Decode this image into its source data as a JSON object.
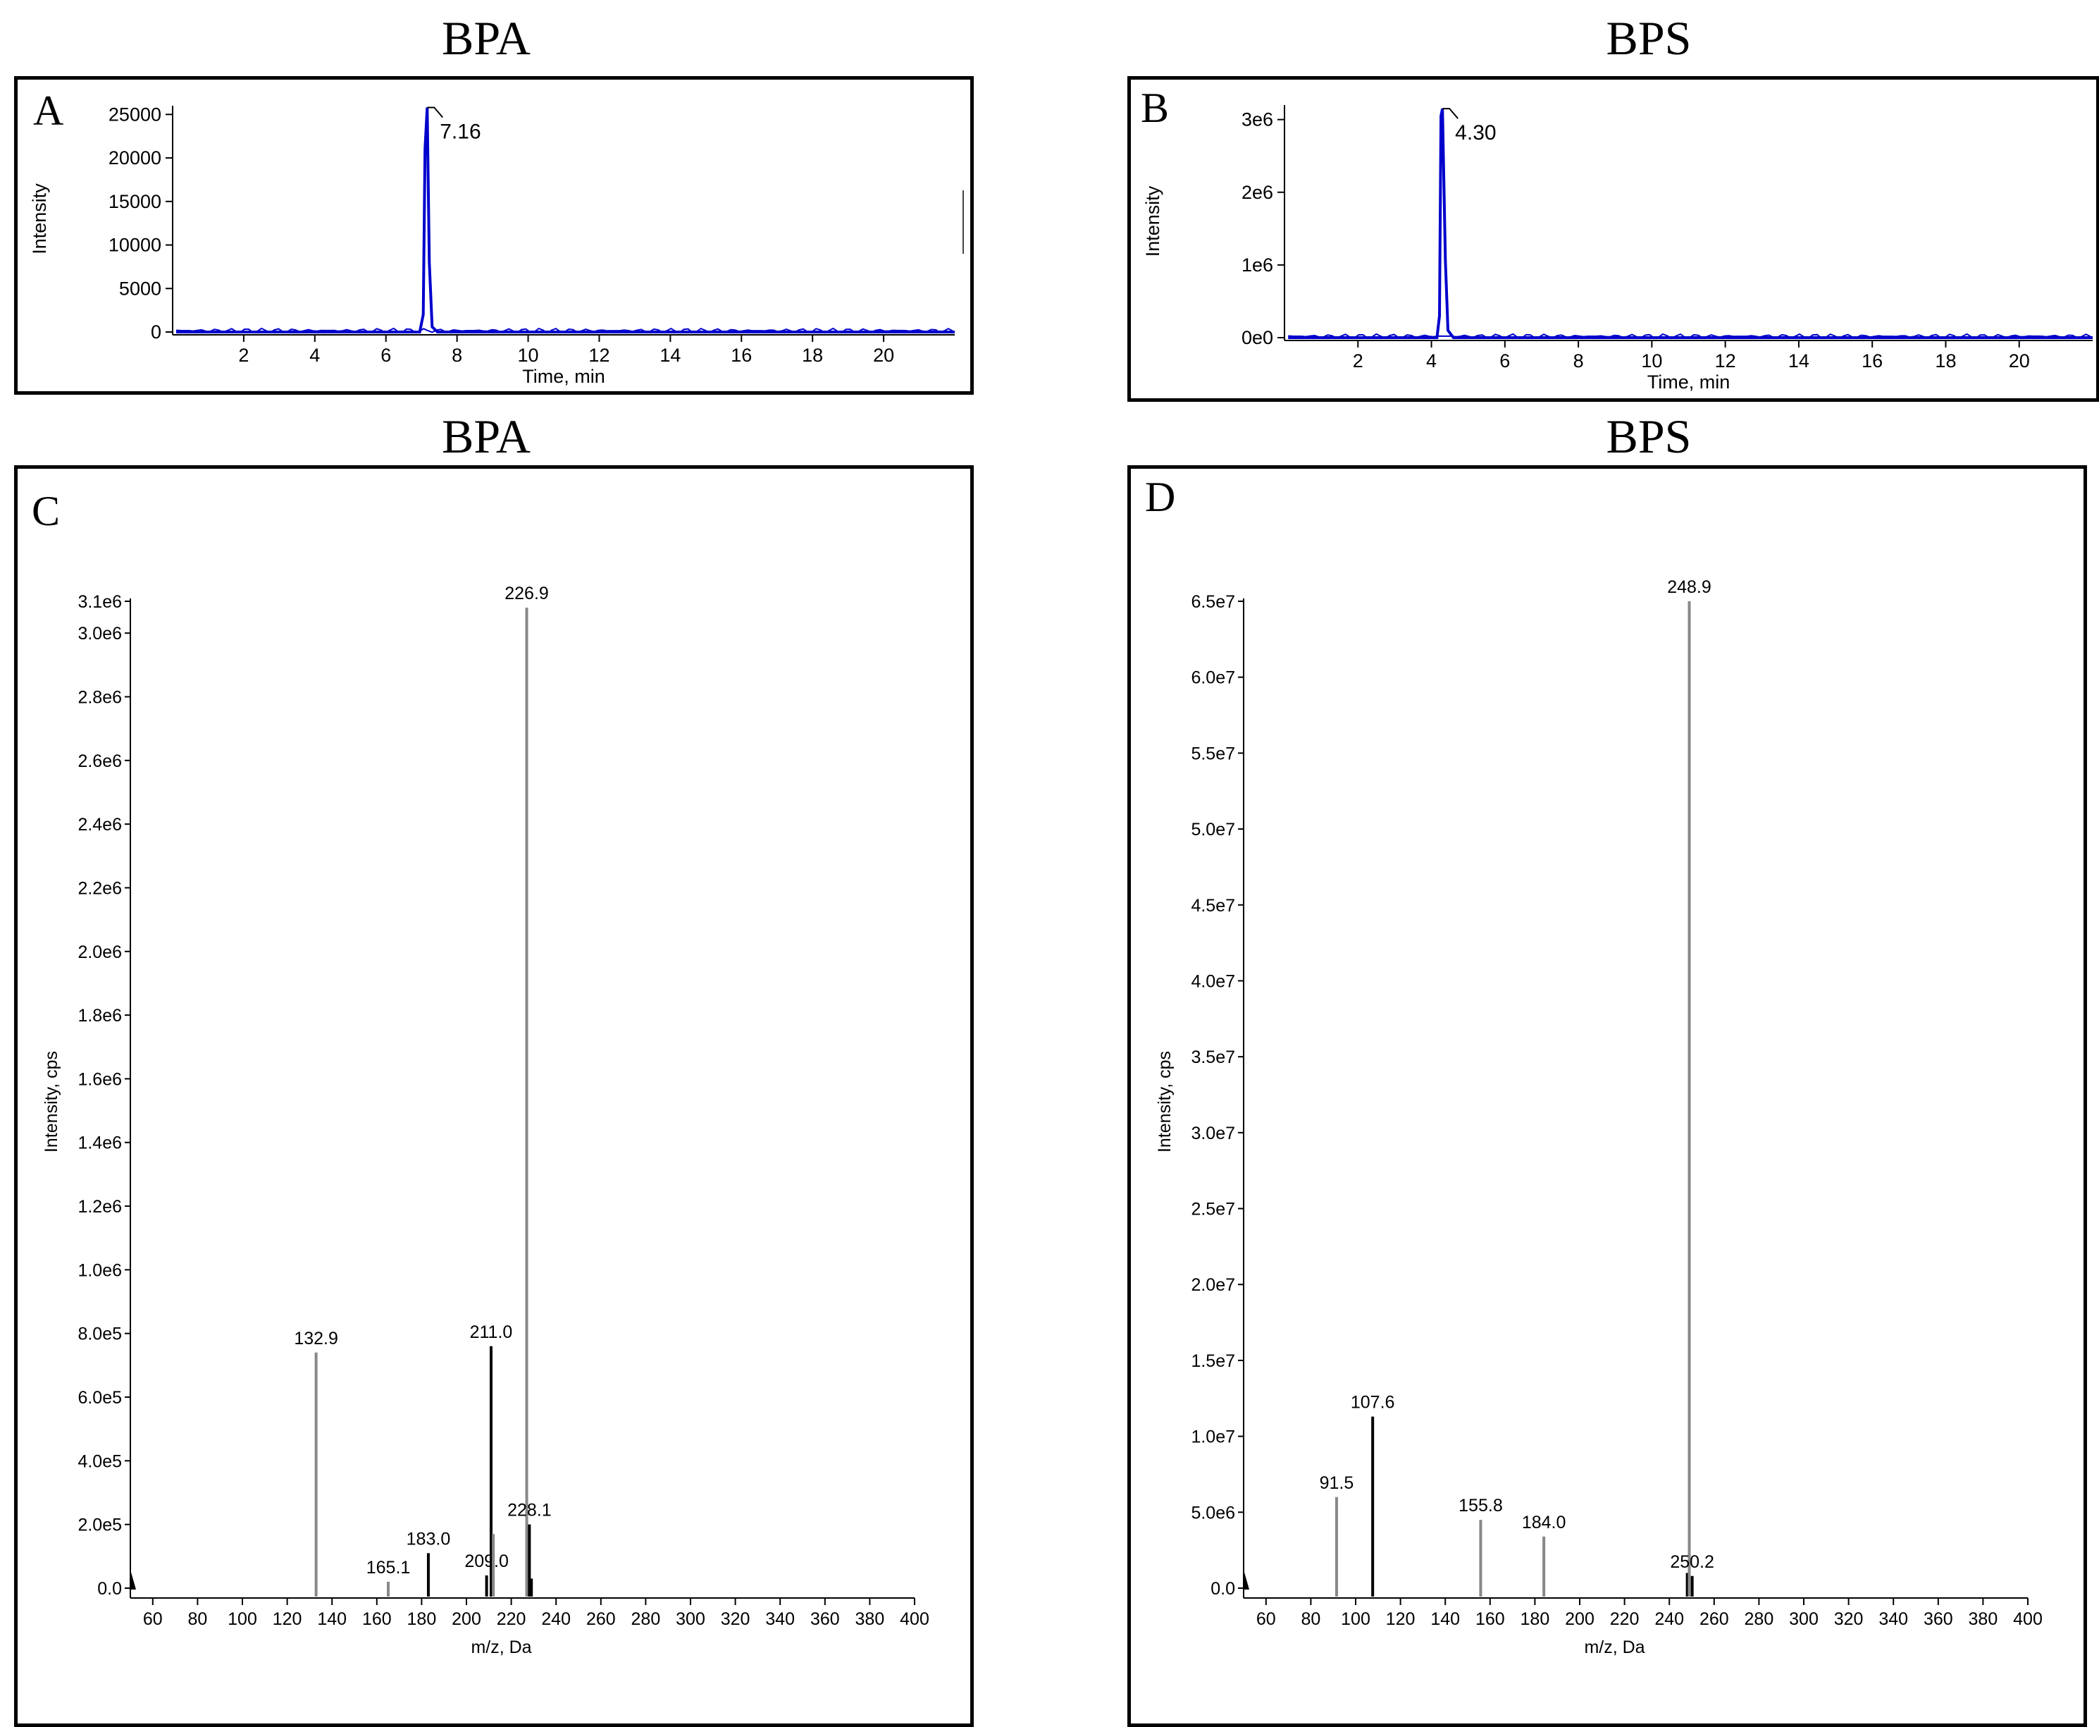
{
  "titles": {
    "a": "BPA",
    "b": "BPS",
    "c": "BPA",
    "d": "BPS"
  },
  "chart_data": [
    {
      "panel": "A",
      "type": "line",
      "title": "BPA",
      "xlabel": "Time, min",
      "ylabel": "Intensity",
      "xlim": [
        0,
        22
      ],
      "ylim": [
        0,
        26000
      ],
      "xticks": [
        2,
        4,
        6,
        8,
        10,
        12,
        14,
        16,
        18,
        20
      ],
      "xtick_labels": [
        "2",
        "4",
        "6",
        "8",
        "10",
        "12",
        "14",
        "16",
        "18",
        "20"
      ],
      "yticks": [
        0,
        5000,
        10000,
        15000,
        20000,
        25000
      ],
      "ytick_labels": [
        "0",
        "5000",
        "10000",
        "15000",
        "20000",
        "25000"
      ],
      "series": [
        {
          "name": "chromatogram",
          "color": "#0000cc",
          "x": [
            0.1,
            6.95,
            7.05,
            7.1,
            7.16,
            7.22,
            7.3,
            7.45,
            22
          ],
          "y": [
            0,
            0,
            2000,
            21000,
            25800,
            8000,
            600,
            0,
            0
          ]
        }
      ],
      "annotations": [
        {
          "x": 7.16,
          "y": 25800,
          "text": "7.16"
        }
      ]
    },
    {
      "panel": "B",
      "type": "line",
      "title": "BPS",
      "xlabel": "Time, min",
      "ylabel": "Intensity",
      "xlim": [
        0,
        22
      ],
      "ylim": [
        0,
        3200000
      ],
      "xticks": [
        2,
        4,
        6,
        8,
        10,
        12,
        14,
        16,
        18,
        20
      ],
      "xtick_labels": [
        "2",
        "4",
        "6",
        "8",
        "10",
        "12",
        "14",
        "16",
        "18",
        "20"
      ],
      "yticks": [
        0,
        1000000,
        2000000,
        3000000
      ],
      "ytick_labels": [
        "0e0",
        "1e6",
        "2e6",
        "3e6"
      ],
      "series": [
        {
          "name": "chromatogram",
          "color": "#0000cc",
          "x": [
            0.1,
            4.15,
            4.22,
            4.26,
            4.3,
            4.38,
            4.45,
            4.6,
            22
          ],
          "y": [
            0,
            0,
            300000,
            3050000,
            3150000,
            1050000,
            100000,
            0,
            0
          ]
        }
      ],
      "annotations": [
        {
          "x": 4.3,
          "y": 3150000,
          "text": "4.30"
        }
      ]
    },
    {
      "panel": "C",
      "type": "bar",
      "title": "BPA",
      "xlabel": "m/z, Da",
      "ylabel": "Intensity, cps",
      "xlim": [
        50,
        400
      ],
      "ylim": [
        0,
        3100000
      ],
      "xticks": [
        60,
        80,
        100,
        120,
        140,
        160,
        180,
        200,
        220,
        240,
        260,
        280,
        300,
        320,
        340,
        360,
        380,
        400
      ],
      "xtick_labels": [
        "60",
        "80",
        "100",
        "120",
        "140",
        "160",
        "180",
        "200",
        "220",
        "240",
        "260",
        "280",
        "300",
        "320",
        "340",
        "360",
        "380",
        "400"
      ],
      "yticks": [
        0,
        200000,
        400000,
        600000,
        800000,
        1000000,
        1200000,
        1400000,
        1600000,
        1800000,
        2000000,
        2200000,
        2400000,
        2600000,
        2800000,
        3000000,
        3100000
      ],
      "ytick_labels": [
        "0.0",
        "2.0e5",
        "4.0e5",
        "6.0e5",
        "8.0e5",
        "1.0e6",
        "1.2e6",
        "1.4e6",
        "1.6e6",
        "1.8e6",
        "2.0e6",
        "2.2e6",
        "2.4e6",
        "2.6e6",
        "2.8e6",
        "3.0e6",
        "3.1e6"
      ],
      "peaks": [
        {
          "mz": 132.9,
          "intensity": 740000,
          "label": "132.9",
          "color": "#888888"
        },
        {
          "mz": 165.1,
          "intensity": 20000,
          "label": "165.1",
          "color": "#888888"
        },
        {
          "mz": 183.0,
          "intensity": 110000,
          "label": "183.0",
          "color": "#000000"
        },
        {
          "mz": 209.0,
          "intensity": 40000,
          "label": "209.0",
          "color": "#000000"
        },
        {
          "mz": 211.0,
          "intensity": 760000,
          "label": "211.0",
          "color": "#000000"
        },
        {
          "mz": 212.0,
          "intensity": 170000,
          "label": "",
          "color": "#888888"
        },
        {
          "mz": 226.9,
          "intensity": 3080000,
          "label": "226.9",
          "color": "#888888"
        },
        {
          "mz": 228.1,
          "intensity": 200000,
          "label": "228.1",
          "color": "#000000"
        },
        {
          "mz": 229.0,
          "intensity": 30000,
          "label": "",
          "color": "#000000"
        }
      ]
    },
    {
      "panel": "D",
      "type": "bar",
      "title": "BPS",
      "xlabel": "m/z, Da",
      "ylabel": "Intensity, cps",
      "xlim": [
        50,
        400
      ],
      "ylim": [
        0,
        65000000
      ],
      "xticks": [
        60,
        80,
        100,
        120,
        140,
        160,
        180,
        200,
        220,
        240,
        260,
        280,
        300,
        320,
        340,
        360,
        380,
        400
      ],
      "xtick_labels": [
        "60",
        "80",
        "100",
        "120",
        "140",
        "160",
        "180",
        "200",
        "220",
        "240",
        "260",
        "280",
        "300",
        "320",
        "340",
        "360",
        "380",
        "400"
      ],
      "yticks": [
        0,
        5000000,
        10000000,
        15000000,
        20000000,
        25000000,
        30000000,
        35000000,
        40000000,
        45000000,
        50000000,
        55000000,
        60000000,
        65000000
      ],
      "ytick_labels": [
        "0.0",
        "5.0e6",
        "1.0e7",
        "1.5e7",
        "2.0e7",
        "2.5e7",
        "3.0e7",
        "3.5e7",
        "4.0e7",
        "4.5e7",
        "5.0e7",
        "5.5e7",
        "6.0e7",
        "6.5e7"
      ],
      "peaks": [
        {
          "mz": 91.5,
          "intensity": 6000000,
          "label": "91.5",
          "color": "#888888"
        },
        {
          "mz": 107.6,
          "intensity": 11300000,
          "label": "107.6",
          "color": "#000000"
        },
        {
          "mz": 155.8,
          "intensity": 4500000,
          "label": "155.8",
          "color": "#888888"
        },
        {
          "mz": 184.0,
          "intensity": 3400000,
          "label": "184.0",
          "color": "#888888"
        },
        {
          "mz": 248.0,
          "intensity": 1000000,
          "label": "",
          "color": "#000000"
        },
        {
          "mz": 248.9,
          "intensity": 65000000,
          "label": "248.9",
          "color": "#888888"
        },
        {
          "mz": 250.2,
          "intensity": 800000,
          "label": "250.2",
          "color": "#000000"
        }
      ]
    }
  ]
}
